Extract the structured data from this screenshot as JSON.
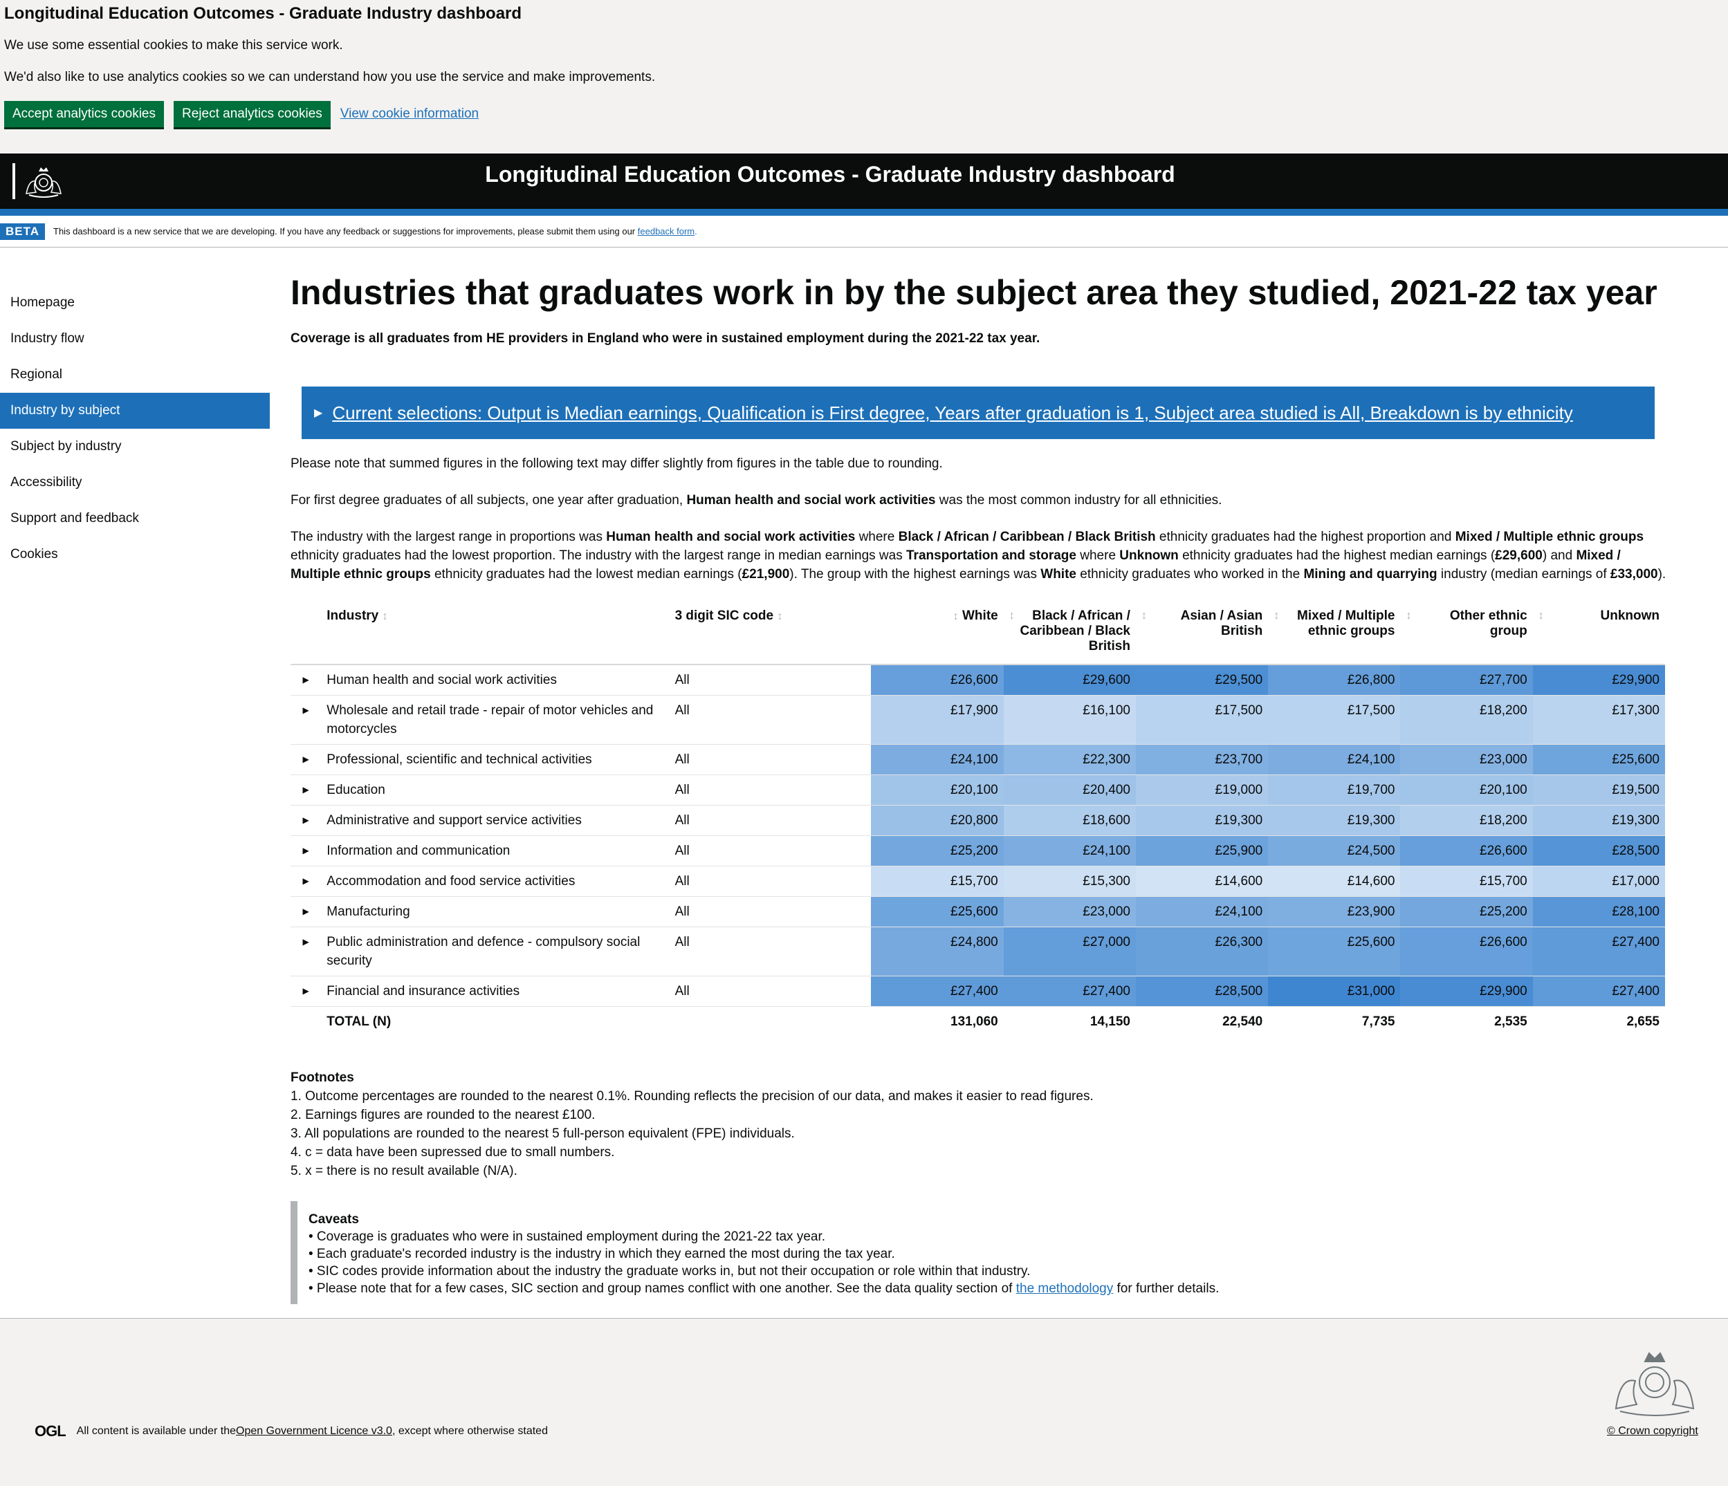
{
  "cookie": {
    "title": "Longitudinal Education Outcomes - Graduate Industry dashboard",
    "text1": "We use some essential cookies to make this service work.",
    "text2": "We'd also like to use analytics cookies so we can understand how you use the service and make improvements.",
    "accept_label": "Accept analytics cookies",
    "reject_label": "Reject analytics cookies",
    "view_label": "View cookie information"
  },
  "header": {
    "title": "Longitudinal Education Outcomes - Graduate Industry dashboard"
  },
  "beta": {
    "tag": "BETA",
    "text": "This dashboard is a new service that we are developing. If you have any feedback or suggestions for improvements, please submit them using our",
    "link": "feedback form",
    "suffix": "."
  },
  "sidebar": {
    "items": [
      {
        "label": "Homepage"
      },
      {
        "label": "Industry flow"
      },
      {
        "label": "Regional"
      },
      {
        "label": "Industry by subject"
      },
      {
        "label": "Subject by industry"
      },
      {
        "label": "Accessibility"
      },
      {
        "label": "Support and feedback"
      },
      {
        "label": "Cookies"
      }
    ],
    "active_index": 3
  },
  "main": {
    "title": "Industries that graduates work in by the subject area they studied, 2021-22 tax year",
    "subtitle": "Coverage is all graduates from HE providers in England who were in sustained employment during the 2021-22 tax year.",
    "selections": "Current selections: Output is Median earnings, Qualification is First degree, Years after graduation is 1, Subject area studied is All, Breakdown is by ethnicity",
    "note": "Please note that summed figures in the following text may differ slightly from figures in the table due to rounding.",
    "para1": {
      "a": "For first degree graduates of all subjects, one year after graduation, ",
      "b": "Human health and social work activities",
      "c": " was the most common industry for all ethnicities."
    },
    "para2": {
      "p1": "The industry with the largest range in proportions was ",
      "b1": "Human health and social work activities",
      "p2": " where ",
      "b2": "Black / African / Caribbean / Black British",
      "p3": " ethnicity graduates had the highest proportion and ",
      "b3": "Mixed / Multiple ethnic groups",
      "p4": " ethnicity graduates had the lowest proportion. The industry with the largest range in median earnings was ",
      "b4": "Transportation and storage",
      "p5": " where ",
      "b5": "Unknown",
      "p6": " ethnicity graduates had the highest median earnings (",
      "b6": "£29,600",
      "p7": ") and ",
      "b7": "Mixed / Multiple ethnic groups",
      "p8": " ethnicity graduates had the lowest median earnings (",
      "b8": "£21,900",
      "p9": "). The group with the highest earnings was ",
      "b9": "White",
      "p10": " ethnicity graduates who worked in the ",
      "b10": "Mining and quarrying",
      "p11": " industry (median earnings of ",
      "b11": "£33,000",
      "p12": ")."
    }
  },
  "table": {
    "headers": {
      "industry": "Industry",
      "sic": "3 digit SIC code",
      "white": "White",
      "black": "Black / African / Caribbean / Black British",
      "asian": "Asian / Asian British",
      "mixed": "Mixed / Multiple ethnic groups",
      "other": "Other ethnic group",
      "unknown": "Unknown"
    },
    "rows": [
      {
        "industry": "Human health and social work activities",
        "sic": "All",
        "vals": [
          "£26,600",
          "£29,600",
          "£29,500",
          "£26,800",
          "£27,700",
          "£29,900"
        ]
      },
      {
        "industry": "Wholesale and retail trade - repair of motor vehicles and motorcycles",
        "sic": "All",
        "vals": [
          "£17,900",
          "£16,100",
          "£17,500",
          "£17,500",
          "£18,200",
          "£17,300"
        ]
      },
      {
        "industry": "Professional, scientific and technical activities",
        "sic": "All",
        "vals": [
          "£24,100",
          "£22,300",
          "£23,700",
          "£24,100",
          "£23,000",
          "£25,600"
        ]
      },
      {
        "industry": "Education",
        "sic": "All",
        "vals": [
          "£20,100",
          "£20,400",
          "£19,000",
          "£19,700",
          "£20,100",
          "£19,500"
        ]
      },
      {
        "industry": "Administrative and support service activities",
        "sic": "All",
        "vals": [
          "£20,800",
          "£18,600",
          "£19,300",
          "£19,300",
          "£18,200",
          "£19,300"
        ]
      },
      {
        "industry": "Information and communication",
        "sic": "All",
        "vals": [
          "£25,200",
          "£24,100",
          "£25,900",
          "£24,500",
          "£26,600",
          "£28,500"
        ]
      },
      {
        "industry": "Accommodation and food service activities",
        "sic": "All",
        "vals": [
          "£15,700",
          "£15,300",
          "£14,600",
          "£14,600",
          "£15,700",
          "£17,000"
        ]
      },
      {
        "industry": "Manufacturing",
        "sic": "All",
        "vals": [
          "£25,600",
          "£23,000",
          "£24,100",
          "£23,900",
          "£25,200",
          "£28,100"
        ]
      },
      {
        "industry": "Public administration and defence - compulsory social security",
        "sic": "All",
        "vals": [
          "£24,800",
          "£27,000",
          "£26,300",
          "£25,600",
          "£26,600",
          "£27,400"
        ]
      },
      {
        "industry": "Financial and insurance activities",
        "sic": "All",
        "vals": [
          "£27,400",
          "£27,400",
          "£28,500",
          "£31,000",
          "£29,900",
          "£27,400"
        ]
      }
    ],
    "total": {
      "label": "TOTAL (N)",
      "vals": [
        "131,060",
        "14,150",
        "22,540",
        "7,735",
        "2,535",
        "2,655"
      ]
    }
  },
  "footnotes": {
    "title": "Footnotes",
    "items": [
      "1. Outcome percentages are rounded to the nearest 0.1%. Rounding reflects the precision of our data, and makes it easier to read figures.",
      "2. Earnings figures are rounded to the nearest £100.",
      "3. All populations are rounded to the nearest 5 full-person equivalent (FPE) individuals.",
      "4. c = data have been supressed due to small numbers.",
      "5. x = there is no result available (N/A)."
    ]
  },
  "caveats": {
    "title": "Caveats",
    "items": [
      "• Coverage is graduates who were in sustained employment during the 2021-22 tax year.",
      "• Each graduate's recorded industry is the industry in which they earned the most during the tax year.",
      "• SIC codes provide information about the industry the graduate works in, but not their occupation or role within that industry."
    ],
    "last_prefix": "• Please note that for a few cases, SIC section and group names conflict with one another. See the data quality section of ",
    "last_link": "the methodology",
    "last_suffix": " for further details."
  },
  "footer": {
    "ogl_logo": "OGL",
    "ogl_prefix": "All content is available under the ",
    "ogl_link": "Open Government Licence v3.0",
    "ogl_suffix": " , except where otherwise stated",
    "crown": "© Crown copyright"
  },
  "colors": {
    "govuk_blue": "#1d70b8",
    "govuk_green": "#00703c",
    "heat_low": "#d2e3f5",
    "heat_high": "#3f86d1"
  }
}
